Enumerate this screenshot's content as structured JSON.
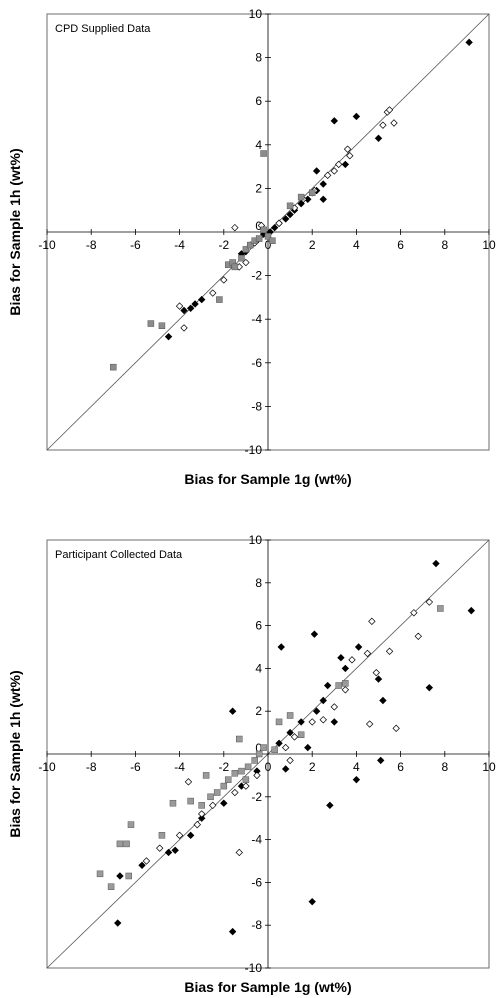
{
  "chart_data": [
    {
      "type": "scatter",
      "title": "",
      "panel_label": "CPD Supplied Data",
      "xlabel": "Bias for Sample 1g  (wt%)",
      "ylabel": "Bias for Sample 1h  (wt%)",
      "xlim": [
        -10,
        10
      ],
      "ylim": [
        -10,
        10
      ],
      "x_ticks": [
        -10,
        -8,
        -6,
        -4,
        -2,
        0,
        2,
        4,
        6,
        8,
        10
      ],
      "y_ticks": [
        -10,
        -8,
        -6,
        -4,
        -2,
        0,
        2,
        4,
        6,
        8,
        10
      ],
      "reference_line": "y = x",
      "grid": false,
      "series": [
        {
          "marker": "filled-diamond",
          "color": "#000000",
          "points": [
            [
              9.1,
              8.7
            ],
            [
              4.0,
              5.3
            ],
            [
              3.0,
              5.1
            ],
            [
              5.0,
              4.3
            ],
            [
              3.5,
              3.1
            ],
            [
              2.5,
              2.2
            ],
            [
              2.2,
              1.9
            ],
            [
              2.0,
              1.8
            ],
            [
              1.8,
              1.5
            ],
            [
              2.5,
              1.5
            ],
            [
              1.2,
              1.0
            ],
            [
              1.0,
              0.8
            ],
            [
              0.8,
              0.6
            ],
            [
              0.5,
              0.4
            ],
            [
              0.3,
              0.2
            ],
            [
              0.1,
              0.0
            ],
            [
              -0.2,
              -0.1
            ],
            [
              -0.5,
              -0.4
            ],
            [
              -1.0,
              -0.9
            ],
            [
              -1.2,
              -1.0
            ],
            [
              -3.3,
              -3.3
            ],
            [
              -3.5,
              -3.5
            ],
            [
              -3.8,
              -3.6
            ],
            [
              -3.0,
              -3.1
            ],
            [
              -4.5,
              -4.8
            ],
            [
              2.2,
              2.8
            ],
            [
              1.5,
              1.3
            ],
            [
              -0.8,
              -0.6
            ]
          ]
        },
        {
          "marker": "open-diamond",
          "color": "#000000",
          "points": [
            [
              5.4,
              5.5
            ],
            [
              5.5,
              5.6
            ],
            [
              5.7,
              5.0
            ],
            [
              5.2,
              4.9
            ],
            [
              3.6,
              3.8
            ],
            [
              3.7,
              3.5
            ],
            [
              3.2,
              3.1
            ],
            [
              3.0,
              2.8
            ],
            [
              2.7,
              2.6
            ],
            [
              2.1,
              1.9
            ],
            [
              1.6,
              1.5
            ],
            [
              1.2,
              1.1
            ],
            [
              0.5,
              0.4
            ],
            [
              -0.3,
              0.3
            ],
            [
              -0.6,
              -0.5
            ],
            [
              -1.3,
              -1.6
            ],
            [
              -2.0,
              -2.2
            ],
            [
              -2.5,
              -2.8
            ],
            [
              -3.8,
              -4.4
            ],
            [
              -4.0,
              -3.4
            ],
            [
              -1.5,
              0.2
            ],
            [
              -1.0,
              -1.4
            ]
          ]
        },
        {
          "marker": "gray-square",
          "color": "#8c8c8c",
          "points": [
            [
              -0.2,
              3.6
            ],
            [
              -7.0,
              -6.2
            ],
            [
              -5.3,
              -4.2
            ],
            [
              -4.8,
              -4.3
            ],
            [
              -2.2,
              -3.1
            ],
            [
              -1.8,
              -1.5
            ],
            [
              -1.6,
              -1.4
            ],
            [
              -1.5,
              -1.6
            ],
            [
              -1.2,
              -1.2
            ],
            [
              -1.0,
              -0.8
            ],
            [
              -0.8,
              -0.6
            ],
            [
              -0.6,
              -0.4
            ],
            [
              -0.4,
              -0.3
            ],
            [
              -0.2,
              0.1
            ],
            [
              0.0,
              -0.2
            ],
            [
              0.2,
              -0.4
            ],
            [
              1.0,
              1.2
            ],
            [
              2.0,
              1.8
            ],
            [
              1.5,
              1.6
            ]
          ]
        }
      ]
    },
    {
      "type": "scatter",
      "title": "",
      "panel_label": "Participant Collected Data",
      "xlabel": "Bias for Sample 1g  (wt%)",
      "ylabel": "Bias for Sample 1h  (wt%)",
      "xlim": [
        -10,
        10
      ],
      "ylim": [
        -10,
        10
      ],
      "x_ticks": [
        -10,
        -8,
        -6,
        -4,
        -2,
        0,
        2,
        4,
        6,
        8,
        10
      ],
      "y_ticks": [
        -10,
        -8,
        -6,
        -4,
        -2,
        0,
        2,
        4,
        6,
        8,
        10
      ],
      "reference_line": "y = x",
      "grid": false,
      "series": [
        {
          "marker": "filled-diamond",
          "color": "#000000",
          "points": [
            [
              7.6,
              8.9
            ],
            [
              9.2,
              6.7
            ],
            [
              7.3,
              3.1
            ],
            [
              0.6,
              5.0
            ],
            [
              2.1,
              5.6
            ],
            [
              4.1,
              5.0
            ],
            [
              3.3,
              4.5
            ],
            [
              3.5,
              4.0
            ],
            [
              2.7,
              3.2
            ],
            [
              5.0,
              3.5
            ],
            [
              5.2,
              2.5
            ],
            [
              2.5,
              2.5
            ],
            [
              2.2,
              2.0
            ],
            [
              1.5,
              1.5
            ],
            [
              1.0,
              1.0
            ],
            [
              0.5,
              0.5
            ],
            [
              -1.6,
              2.0
            ],
            [
              -0.5,
              -0.8
            ],
            [
              -1.2,
              -1.5
            ],
            [
              -2.0,
              -2.3
            ],
            [
              -3.0,
              -3.0
            ],
            [
              -3.5,
              -3.8
            ],
            [
              -4.2,
              -4.5
            ],
            [
              -4.5,
              -4.6
            ],
            [
              -5.7,
              -5.2
            ],
            [
              -6.7,
              -5.7
            ],
            [
              -6.8,
              -7.9
            ],
            [
              -1.6,
              -8.3
            ],
            [
              2.0,
              -6.9
            ],
            [
              2.8,
              -2.4
            ],
            [
              4.0,
              -1.2
            ],
            [
              5.1,
              -0.3
            ],
            [
              0.8,
              -0.7
            ],
            [
              1.8,
              0.3
            ],
            [
              3.0,
              1.5
            ]
          ]
        },
        {
          "marker": "open-diamond",
          "color": "#000000",
          "points": [
            [
              7.3,
              7.1
            ],
            [
              6.6,
              6.6
            ],
            [
              6.8,
              5.5
            ],
            [
              4.7,
              6.2
            ],
            [
              5.5,
              4.8
            ],
            [
              4.5,
              4.7
            ],
            [
              3.8,
              4.4
            ],
            [
              4.9,
              3.8
            ],
            [
              3.5,
              3.0
            ],
            [
              3.0,
              2.2
            ],
            [
              2.5,
              1.6
            ],
            [
              2.0,
              1.5
            ],
            [
              1.2,
              0.8
            ],
            [
              0.8,
              0.3
            ],
            [
              1.0,
              -0.3
            ],
            [
              -0.5,
              -1.0
            ],
            [
              -1.0,
              -1.5
            ],
            [
              -1.5,
              -1.8
            ],
            [
              -2.5,
              -2.4
            ],
            [
              -3.0,
              -2.8
            ],
            [
              -3.2,
              -3.3
            ],
            [
              -4.0,
              -3.8
            ],
            [
              -4.9,
              -4.4
            ],
            [
              -5.5,
              -5.0
            ],
            [
              -1.3,
              -4.6
            ],
            [
              -3.6,
              -1.3
            ],
            [
              4.6,
              1.4
            ],
            [
              5.8,
              1.2
            ]
          ]
        },
        {
          "marker": "gray-square",
          "color": "#9a9a9a",
          "points": [
            [
              7.8,
              6.8
            ],
            [
              3.2,
              3.2
            ],
            [
              3.5,
              3.3
            ],
            [
              0.5,
              1.5
            ],
            [
              1.0,
              1.8
            ],
            [
              -1.3,
              0.7
            ],
            [
              -0.2,
              0.3
            ],
            [
              -0.4,
              0.0
            ],
            [
              -0.6,
              -0.3
            ],
            [
              -0.9,
              -0.6
            ],
            [
              -1.2,
              -0.8
            ],
            [
              -1.5,
              -0.9
            ],
            [
              -1.8,
              -1.2
            ],
            [
              -2.0,
              -1.5
            ],
            [
              -2.3,
              -1.8
            ],
            [
              -2.6,
              -2.0
            ],
            [
              -3.0,
              -2.4
            ],
            [
              -3.5,
              -2.2
            ],
            [
              -4.3,
              -2.3
            ],
            [
              -4.8,
              -3.8
            ],
            [
              -6.2,
              -3.3
            ],
            [
              -6.7,
              -4.2
            ],
            [
              -6.4,
              -4.2
            ],
            [
              -7.6,
              -5.6
            ],
            [
              -7.1,
              -6.2
            ],
            [
              -6.3,
              -5.7
            ],
            [
              0.3,
              0.2
            ],
            [
              1.5,
              0.9
            ],
            [
              -1.0,
              -1.2
            ],
            [
              -2.8,
              -1.0
            ]
          ]
        }
      ]
    }
  ]
}
